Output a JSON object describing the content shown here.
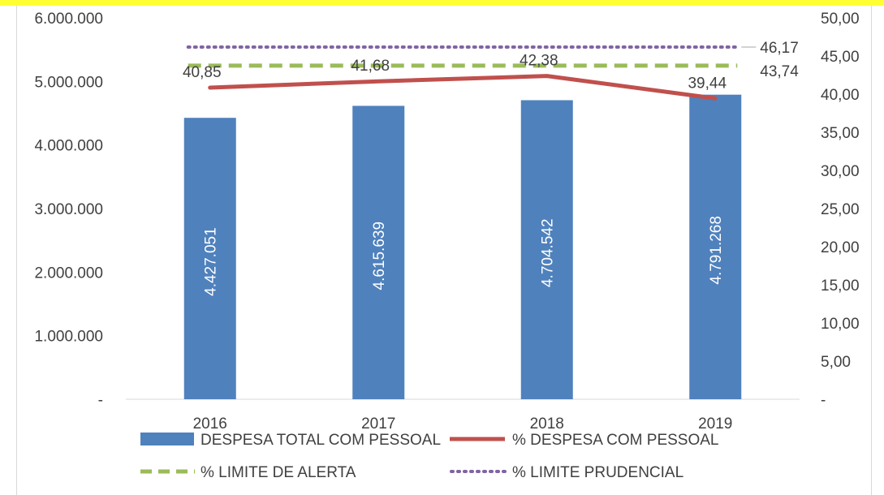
{
  "chart_data": {
    "type": "bar",
    "categories": [
      "2016",
      "2017",
      "2018",
      "2019"
    ],
    "series": [
      {
        "name": "DESPESA TOTAL COM PESSOAL",
        "kind": "bar",
        "axis": "left",
        "values": [
          4427051,
          4615639,
          4704542,
          4791268
        ],
        "labels": [
          "4.427.051",
          "4.615.639",
          "4.704.542",
          "4.791.268"
        ],
        "color": "#4f81bd"
      },
      {
        "name": "% DESPESA COM PESSOAL",
        "kind": "line",
        "axis": "right",
        "values": [
          40.85,
          41.68,
          42.38,
          39.44
        ],
        "labels": [
          "40,85",
          "41,68",
          "42,38",
          "39,44"
        ],
        "color": "#c0504d"
      },
      {
        "name": "% LIMITE DE ALERTA",
        "kind": "line-dashed",
        "axis": "right",
        "values": [
          43.74,
          43.74,
          43.74,
          43.74
        ],
        "end_label": "43,74",
        "color": "#9bbb59"
      },
      {
        "name": "% LIMITE PRUDENCIAL",
        "kind": "line-dotted",
        "axis": "right",
        "values": [
          46.17,
          46.17,
          46.17,
          46.17
        ],
        "end_label": "46,17",
        "color": "#8064a2"
      }
    ],
    "left_axis": {
      "min": 0,
      "max": 6000000,
      "ticks": [
        "-",
        "1.000.000",
        "2.000.000",
        "3.000.000",
        "4.000.000",
        "5.000.000",
        "6.000.000"
      ]
    },
    "right_axis": {
      "min": 0,
      "max": 50,
      "ticks": [
        "-",
        "5,00",
        "10,00",
        "15,00",
        "20,00",
        "25,00",
        "30,00",
        "35,00",
        "40,00",
        "45,00",
        "50,00"
      ]
    },
    "grid": false,
    "legend": "bottom"
  }
}
